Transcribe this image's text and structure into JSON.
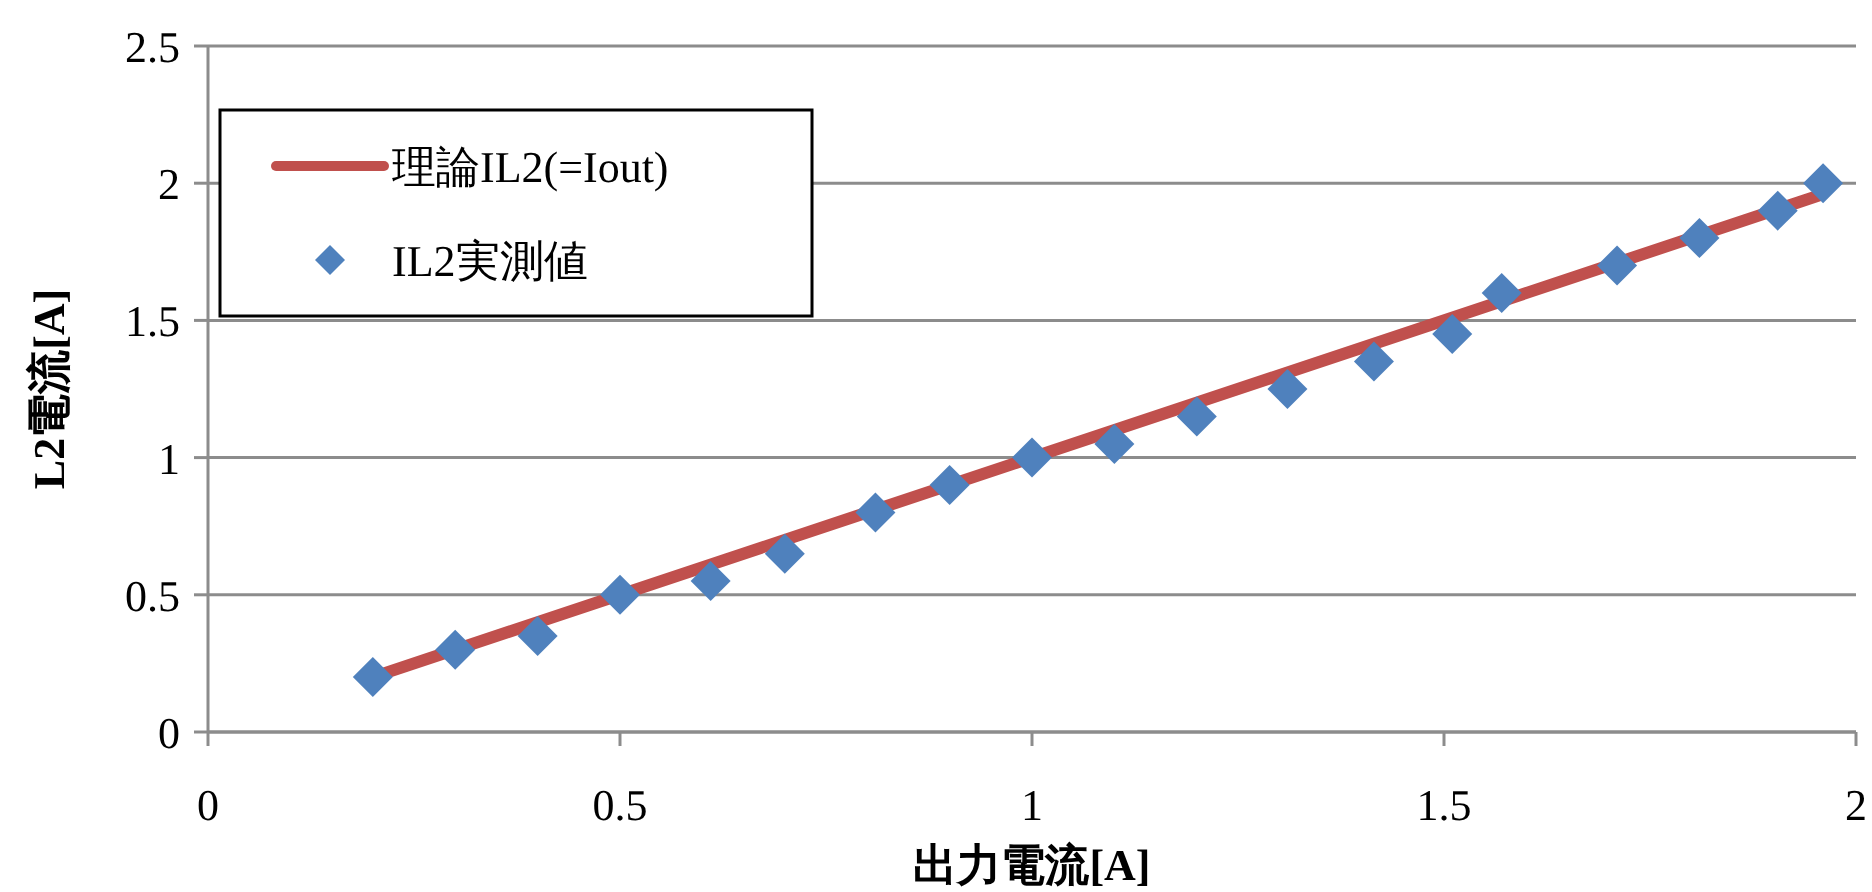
{
  "chart_data": {
    "type": "scatter",
    "xlabel": "出力電流[A]",
    "ylabel": "L2電流[A]",
    "xlim": [
      0,
      2
    ],
    "xticks": [
      0,
      0.5,
      1,
      1.5,
      2
    ],
    "ylim": [
      0,
      2.5
    ],
    "yticks": [
      0,
      0.5,
      1,
      1.5,
      2,
      2.5
    ],
    "grid": "y",
    "legend": "top left",
    "series": [
      {
        "name": "理論IL2(=Iout)",
        "type": "line",
        "color": "#c0504d",
        "marker": "none",
        "line_style": "solid",
        "x": [
          0.2,
          1.96
        ],
        "values": [
          0.2,
          1.96
        ]
      },
      {
        "name": "IL2実測値",
        "type": "scatter",
        "color": "#4f81bd",
        "marker": "diamond",
        "x": [
          0.2,
          0.3,
          0.4,
          0.5,
          0.61,
          0.7,
          0.81,
          0.9,
          1.0,
          1.1,
          1.2,
          1.31,
          1.415,
          1.51,
          1.57,
          1.71,
          1.81,
          1.905,
          1.96
        ],
        "values": [
          0.2,
          0.3,
          0.35,
          0.5,
          0.55,
          0.65,
          0.8,
          0.9,
          1.0,
          1.05,
          1.15,
          1.25,
          1.35,
          1.45,
          1.6,
          1.7,
          1.8,
          1.9,
          2.0
        ]
      }
    ]
  }
}
